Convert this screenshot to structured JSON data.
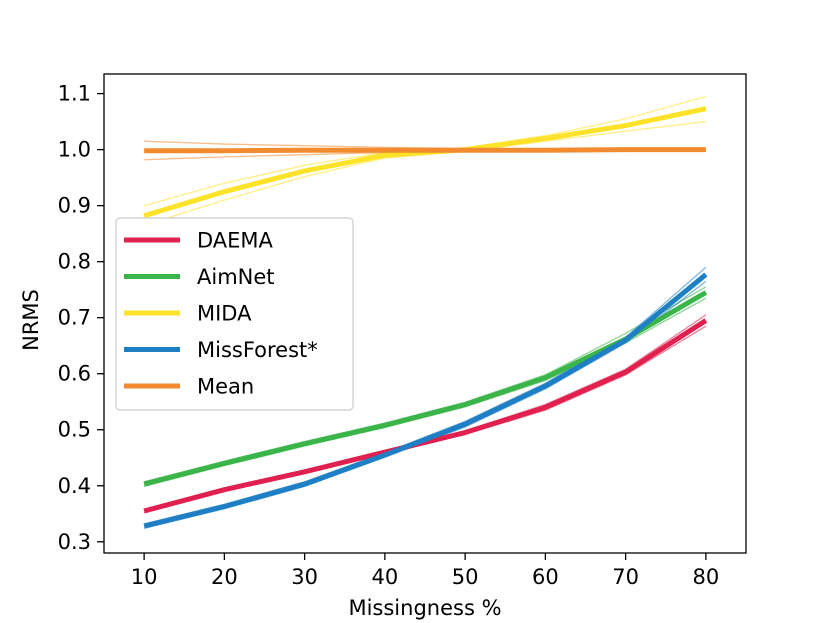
{
  "chart_data": {
    "type": "line",
    "title": "",
    "xlabel": "Missingness %",
    "ylabel": "NRMS",
    "x": [
      10,
      20,
      30,
      40,
      50,
      60,
      70,
      80
    ],
    "xlim": [
      5,
      85
    ],
    "ylim": [
      0.28,
      1.135
    ],
    "xticks": [
      10,
      20,
      30,
      40,
      50,
      60,
      70,
      80
    ],
    "yticks": [
      0.3,
      0.4,
      0.5,
      0.6,
      0.7,
      0.8,
      0.9,
      1.0,
      1.1
    ],
    "ytick_labels": [
      "0.3",
      "0.4",
      "0.5",
      "0.6",
      "0.7",
      "0.8",
      "0.9",
      "1.0",
      "1.1"
    ],
    "legend_position": "center-left",
    "series": [
      {
        "name": "DAEMA",
        "color": "#e0204e",
        "values": [
          0.355,
          0.393,
          0.425,
          0.46,
          0.495,
          0.54,
          0.603,
          0.695
        ],
        "band_upper": [
          0.358,
          0.396,
          0.428,
          0.463,
          0.498,
          0.545,
          0.608,
          0.705
        ],
        "band_lower": [
          0.352,
          0.39,
          0.422,
          0.457,
          0.492,
          0.535,
          0.598,
          0.685
        ]
      },
      {
        "name": "AimNet",
        "color": "#3bb44a",
        "values": [
          0.403,
          0.44,
          0.475,
          0.508,
          0.545,
          0.593,
          0.662,
          0.745
        ],
        "band_upper": [
          0.407,
          0.444,
          0.479,
          0.512,
          0.549,
          0.598,
          0.672,
          0.755
        ],
        "band_lower": [
          0.399,
          0.436,
          0.471,
          0.504,
          0.541,
          0.588,
          0.655,
          0.735
        ]
      },
      {
        "name": "MIDA",
        "color": "#fde22a",
        "values": [
          0.882,
          0.925,
          0.962,
          0.99,
          1.0,
          1.02,
          1.043,
          1.073
        ],
        "band_upper": [
          0.9,
          0.94,
          0.972,
          0.995,
          1.003,
          1.025,
          1.055,
          1.095
        ],
        "band_lower": [
          0.865,
          0.91,
          0.952,
          0.985,
          0.997,
          1.015,
          1.033,
          1.05
        ]
      },
      {
        "name": "MissForest*",
        "color": "#1f7fc4",
        "values": [
          0.328,
          0.363,
          0.403,
          0.455,
          0.51,
          0.578,
          0.66,
          0.777
        ],
        "band_upper": [
          0.332,
          0.367,
          0.407,
          0.459,
          0.515,
          0.583,
          0.665,
          0.79
        ],
        "band_lower": [
          0.324,
          0.359,
          0.399,
          0.451,
          0.505,
          0.573,
          0.655,
          0.765
        ]
      },
      {
        "name": "Mean",
        "color": "#f28a30",
        "values": [
          0.998,
          0.998,
          0.999,
          0.999,
          0.999,
          0.999,
          1.0,
          1.0
        ],
        "band_upper": [
          1.015,
          1.01,
          1.007,
          1.004,
          1.002,
          1.001,
          1.001,
          1.001
        ],
        "band_lower": [
          0.982,
          0.987,
          0.991,
          0.995,
          0.997,
          0.998,
          0.999,
          0.999
        ]
      }
    ]
  }
}
